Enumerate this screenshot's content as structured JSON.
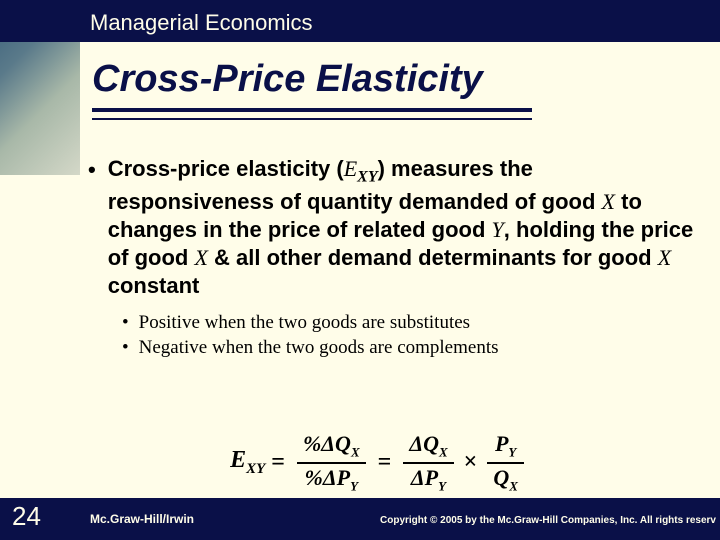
{
  "header": {
    "course_title": "Managerial Economics",
    "slide_title": "Cross-Price Elasticity",
    "colors": {
      "navy": "#0a1048",
      "slide_bg": "#fffde9"
    }
  },
  "body": {
    "main_bullet": {
      "pre": "Cross-price elasticity (",
      "var": "E",
      "var_sub": "XY",
      "mid": ") measures the responsiveness of quantity demanded of good ",
      "goodX_1": "X",
      "mid2": " to changes in the price of related good ",
      "goodY": "Y",
      "mid3": ", holding the price of good ",
      "goodX_2": "X",
      "mid4": " & all other demand determinants for good ",
      "goodX_3": "X",
      "tail": " constant"
    },
    "sub_bullets": [
      "Positive when the two goods are substitutes",
      "Negative when the two goods are complements"
    ]
  },
  "formula": {
    "lhs_var": "E",
    "lhs_sub": "XY",
    "frac1_num": "%ΔQ",
    "frac1_num_sub": "X",
    "frac1_den": "%ΔP",
    "frac1_den_sub": "Y",
    "frac2_num": "ΔQ",
    "frac2_num_sub": "X",
    "frac2_den": "ΔP",
    "frac2_den_sub": "Y",
    "frac3_num": "P",
    "frac3_num_sub": "Y",
    "frac3_den": "Q",
    "frac3_den_sub": "X"
  },
  "footer": {
    "slide_number": "24",
    "publisher": "Mc.Graw-Hill/Irwin",
    "copyright": "Copyright © 2005 by the Mc.Graw-Hill Companies, Inc. All rights reserv"
  }
}
